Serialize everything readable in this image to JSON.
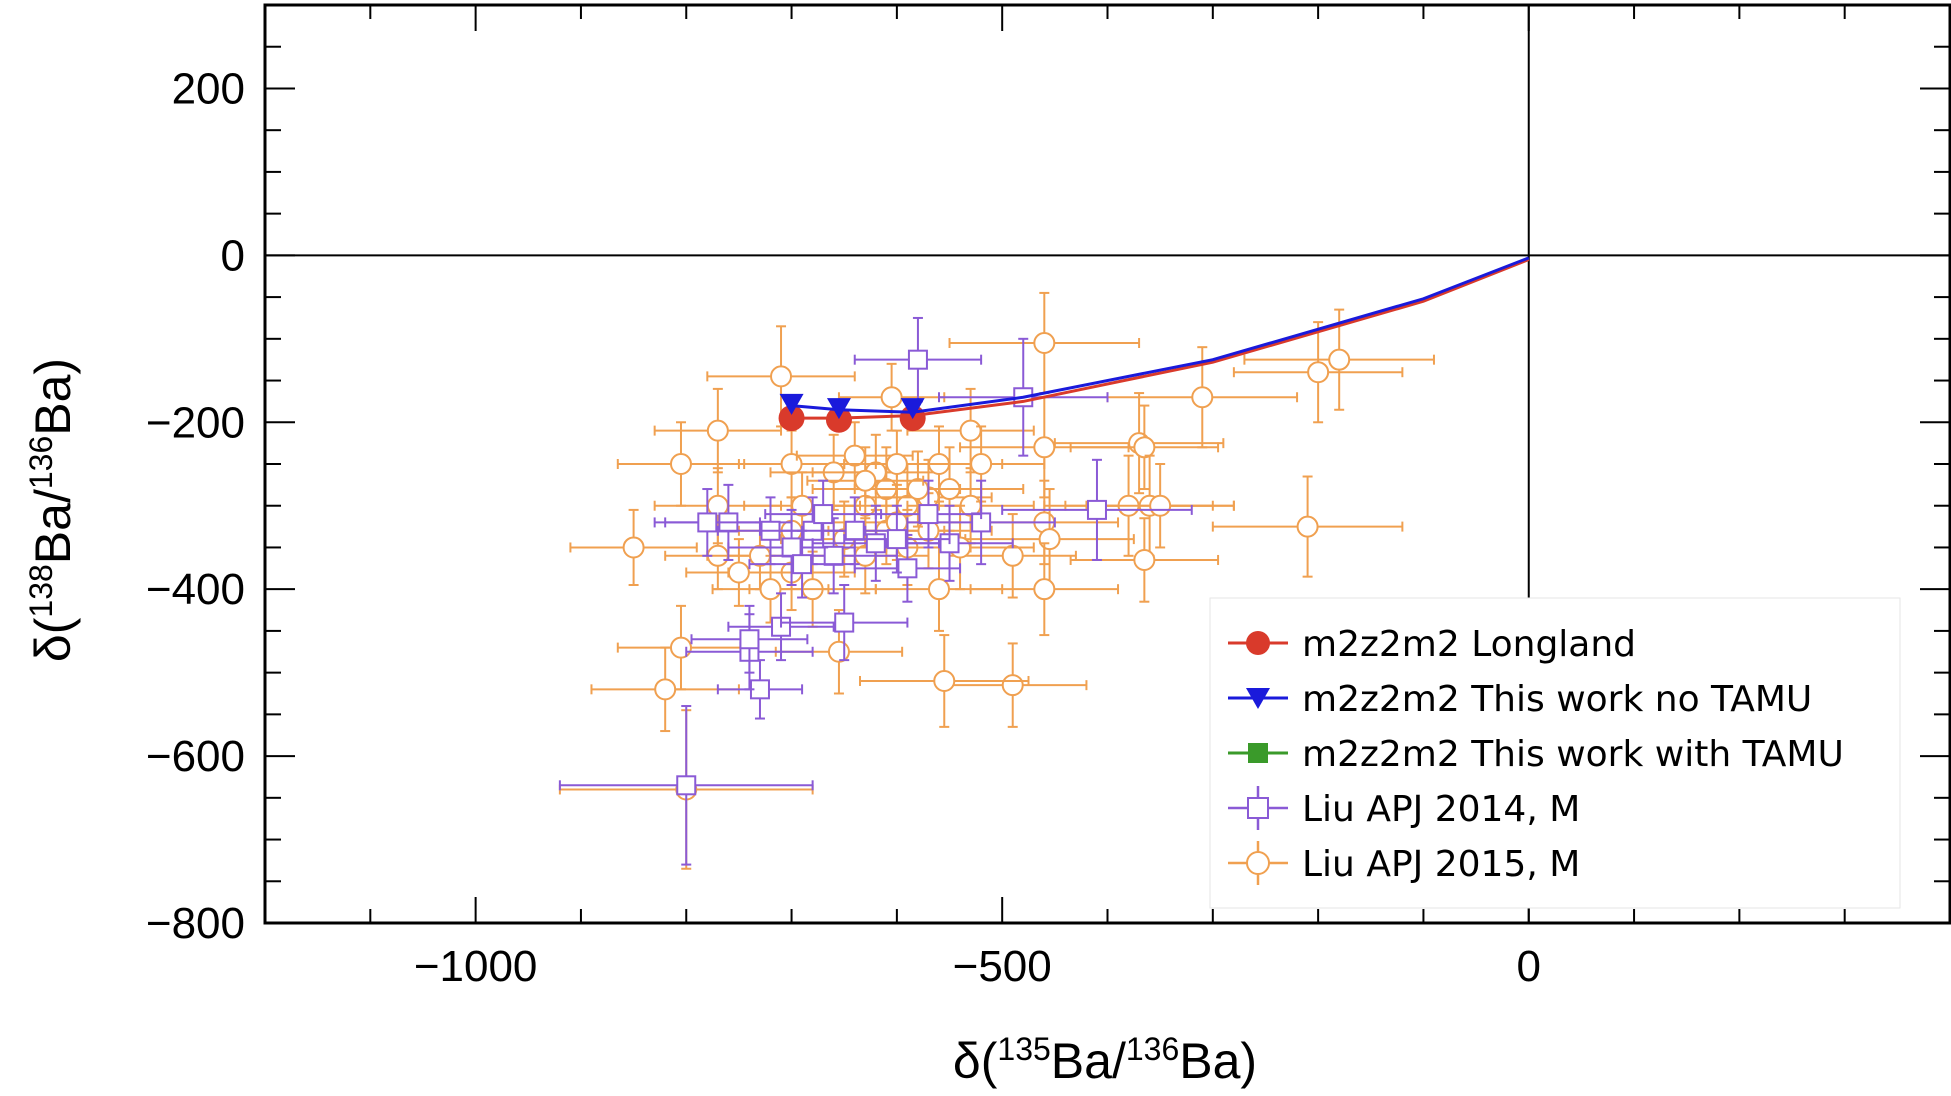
{
  "chart_data": {
    "type": "scatter",
    "title": "",
    "xlabel": {
      "prefix": "δ(",
      "sup1": "135",
      "mid": "Ba/",
      "sup2": "136",
      "suffix": "Ba)"
    },
    "ylabel": {
      "prefix": "δ(",
      "sup1": "138",
      "mid": "Ba/",
      "sup2": "136",
      "suffix": "Ba)"
    },
    "xlim": [
      -1200,
      400
    ],
    "ylim": [
      -800,
      300
    ],
    "xticks": [
      -1000,
      -500,
      0
    ],
    "xtick_labels": [
      "−1000",
      "−500",
      "0"
    ],
    "yticks": [
      -800,
      -600,
      -400,
      -200,
      0,
      200
    ],
    "ytick_labels": [
      "−800",
      "−600",
      "−400",
      "−200",
      "0",
      "200"
    ],
    "reference_lines": {
      "x": 0,
      "y": 0
    },
    "legend_position": "bottom-right",
    "series": [
      {
        "name": "m2z2m2 Longland",
        "kind": "line+markers",
        "color": "#d93a2b",
        "marker": "circle-filled",
        "line": [
          [
            -700,
            -195
          ],
          [
            -655,
            -195
          ],
          [
            -585,
            -192
          ],
          [
            -480,
            -175
          ],
          [
            -300,
            -128
          ],
          [
            -100,
            -55
          ],
          [
            0,
            -5
          ]
        ],
        "points": [
          [
            -700,
            -195
          ],
          [
            -655,
            -197
          ],
          [
            -585,
            -195
          ]
        ]
      },
      {
        "name": "m2z2m2 This work no TAMU",
        "kind": "line+markers",
        "color": "#1a1adb",
        "marker": "triangle-down",
        "line": [
          [
            -700,
            -180
          ],
          [
            -655,
            -185
          ],
          [
            -585,
            -188
          ],
          [
            -480,
            -170
          ],
          [
            -300,
            -125
          ],
          [
            -100,
            -52
          ],
          [
            0,
            -3
          ]
        ],
        "points": [
          [
            -700,
            -178
          ],
          [
            -655,
            -183
          ],
          [
            -585,
            -183
          ]
        ]
      },
      {
        "name": "m2z2m2 This work with TAMU",
        "kind": "line+markers",
        "color": "#3a9a2a",
        "marker": "square-filled",
        "line": [],
        "points": []
      },
      {
        "name": "Liu APJ 2014, M",
        "kind": "errorbar",
        "color": "#8a5ad6",
        "marker": "square-open",
        "points": [
          [
            -580,
            -125,
            60,
            50
          ],
          [
            -480,
            -170,
            80,
            70
          ],
          [
            -800,
            -635,
            120,
            95
          ],
          [
            -730,
            -520,
            40,
            35
          ],
          [
            -740,
            -475,
            60,
            45
          ],
          [
            -710,
            -445,
            50,
            40
          ],
          [
            -650,
            -440,
            60,
            45
          ],
          [
            -590,
            -375,
            50,
            40
          ],
          [
            -550,
            -345,
            60,
            45
          ],
          [
            -520,
            -320,
            70,
            50
          ],
          [
            -570,
            -310,
            50,
            40
          ],
          [
            -410,
            -305,
            90,
            60
          ],
          [
            -760,
            -320,
            60,
            45
          ],
          [
            -780,
            -320,
            50,
            40
          ],
          [
            -720,
            -330,
            50,
            40
          ],
          [
            -700,
            -350,
            60,
            45
          ],
          [
            -680,
            -330,
            50,
            40
          ],
          [
            -660,
            -360,
            60,
            45
          ],
          [
            -640,
            -330,
            50,
            40
          ],
          [
            -620,
            -345,
            60,
            45
          ],
          [
            -600,
            -340,
            50,
            40
          ],
          [
            -670,
            -310,
            55,
            40
          ],
          [
            -690,
            -370,
            50,
            40
          ],
          [
            -740,
            -460,
            55,
            40
          ]
        ]
      },
      {
        "name": "Liu APJ 2015, M",
        "kind": "errorbar",
        "color": "#f0a050",
        "marker": "circle-open",
        "points": [
          [
            -460,
            -105,
            90,
            60
          ],
          [
            -200,
            -140,
            80,
            60
          ],
          [
            -180,
            -125,
            90,
            60
          ],
          [
            -310,
            -170,
            90,
            60
          ],
          [
            -370,
            -225,
            80,
            60
          ],
          [
            -365,
            -230,
            70,
            50
          ],
          [
            -460,
            -230,
            80,
            60
          ],
          [
            -530,
            -210,
            60,
            50
          ],
          [
            -605,
            -170,
            50,
            40
          ],
          [
            -710,
            -145,
            70,
            60
          ],
          [
            -770,
            -210,
            60,
            50
          ],
          [
            -805,
            -250,
            60,
            50
          ],
          [
            -700,
            -250,
            50,
            40
          ],
          [
            -360,
            -300,
            80,
            60
          ],
          [
            -380,
            -300,
            80,
            60
          ],
          [
            -350,
            -300,
            70,
            50
          ],
          [
            -210,
            -325,
            90,
            60
          ],
          [
            -460,
            -320,
            70,
            50
          ],
          [
            -455,
            -340,
            80,
            60
          ],
          [
            -365,
            -365,
            70,
            50
          ],
          [
            -490,
            -360,
            60,
            50
          ],
          [
            -460,
            -400,
            70,
            55
          ],
          [
            -560,
            -400,
            60,
            50
          ],
          [
            -490,
            -515,
            70,
            50
          ],
          [
            -555,
            -510,
            80,
            55
          ],
          [
            -655,
            -475,
            60,
            50
          ],
          [
            -805,
            -470,
            60,
            50
          ],
          [
            -820,
            -520,
            70,
            50
          ],
          [
            -850,
            -350,
            60,
            45
          ],
          [
            -770,
            -300,
            60,
            45
          ],
          [
            -770,
            -360,
            50,
            40
          ],
          [
            -730,
            -360,
            50,
            40
          ],
          [
            -700,
            -380,
            60,
            45
          ],
          [
            -680,
            -400,
            60,
            45
          ],
          [
            -630,
            -300,
            70,
            50
          ],
          [
            -610,
            -280,
            70,
            50
          ],
          [
            -590,
            -300,
            70,
            50
          ],
          [
            -570,
            -290,
            60,
            45
          ],
          [
            -550,
            -280,
            70,
            50
          ],
          [
            -530,
            -300,
            60,
            45
          ],
          [
            -650,
            -340,
            60,
            45
          ],
          [
            -630,
            -360,
            60,
            45
          ],
          [
            -610,
            -330,
            55,
            40
          ],
          [
            -590,
            -350,
            60,
            45
          ],
          [
            -570,
            -330,
            60,
            45
          ],
          [
            -540,
            -350,
            70,
            50
          ],
          [
            -690,
            -300,
            55,
            40
          ],
          [
            -660,
            -260,
            60,
            45
          ],
          [
            -640,
            -240,
            55,
            40
          ],
          [
            -620,
            -260,
            60,
            45
          ],
          [
            -600,
            -320,
            60,
            45
          ],
          [
            -580,
            -280,
            60,
            45
          ],
          [
            -700,
            -330,
            50,
            40
          ],
          [
            -720,
            -400,
            55,
            40
          ],
          [
            -750,
            -380,
            50,
            40
          ],
          [
            -800,
            -640,
            120,
            95
          ],
          [
            -560,
            -250,
            60,
            45
          ],
          [
            -520,
            -250,
            60,
            45
          ],
          [
            -600,
            -250,
            50,
            40
          ],
          [
            -630,
            -270,
            55,
            40
          ]
        ]
      }
    ]
  }
}
